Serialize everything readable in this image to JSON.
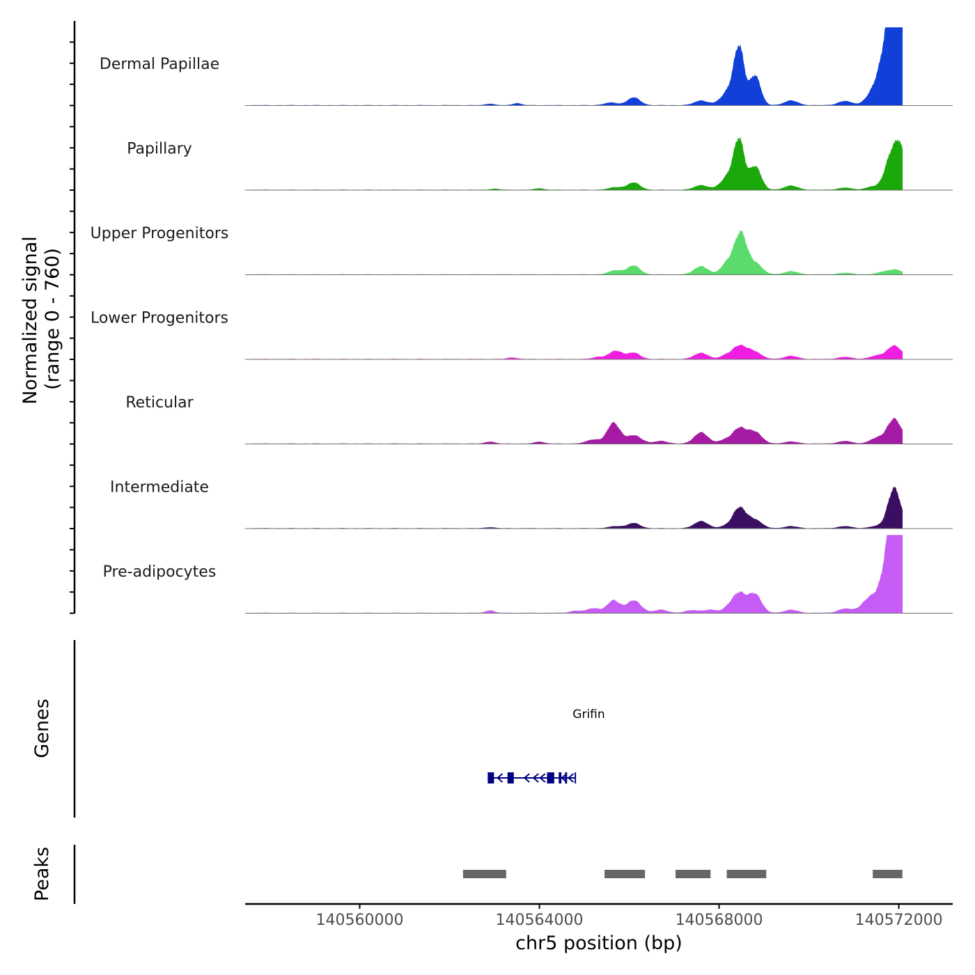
{
  "chart_data": {
    "type": "area",
    "ylabel_line1": "Normalized signal",
    "ylabel_line2": "(range 0 - 760)",
    "xlabel": "chr5 position (bp)",
    "xlim": [
      140557450,
      140573200
    ],
    "ylim": [
      0,
      760
    ],
    "x_ticks": [
      140560000,
      140564000,
      140568000,
      140572000
    ],
    "x_tick_labels": [
      "140560000",
      "140564000",
      "140568000",
      "140572000"
    ],
    "series": [
      {
        "name": "Dermal Papillae",
        "color": "#1140d9",
        "peaks": [
          {
            "x": 140562900,
            "h": 15,
            "w": 90
          },
          {
            "x": 140563500,
            "h": 20,
            "w": 90
          },
          {
            "x": 140565600,
            "h": 25,
            "w": 150
          },
          {
            "x": 140566100,
            "h": 75,
            "w": 140
          },
          {
            "x": 140567600,
            "h": 45,
            "w": 150
          },
          {
            "x": 140568250,
            "h": 150,
            "w": 180
          },
          {
            "x": 140568450,
            "h": 500,
            "w": 110
          },
          {
            "x": 140568800,
            "h": 290,
            "w": 120
          },
          {
            "x": 140569600,
            "h": 45,
            "w": 150
          },
          {
            "x": 140570800,
            "h": 40,
            "w": 150
          },
          {
            "x": 140571400,
            "h": 60,
            "w": 160
          },
          {
            "x": 140571700,
            "h": 330,
            "w": 200
          },
          {
            "x": 140571850,
            "h": 560,
            "w": 150
          },
          {
            "x": 140571950,
            "h": 700,
            "w": 120
          },
          {
            "x": 140572050,
            "h": 450,
            "w": 70
          }
        ]
      },
      {
        "name": "Papillary",
        "color": "#1aa80a",
        "peaks": [
          {
            "x": 140563000,
            "h": 10,
            "w": 90
          },
          {
            "x": 140564000,
            "h": 15,
            "w": 90
          },
          {
            "x": 140565700,
            "h": 25,
            "w": 150
          },
          {
            "x": 140566100,
            "h": 70,
            "w": 140
          },
          {
            "x": 140567600,
            "h": 45,
            "w": 150
          },
          {
            "x": 140568250,
            "h": 150,
            "w": 180
          },
          {
            "x": 140568450,
            "h": 420,
            "w": 110
          },
          {
            "x": 140568800,
            "h": 230,
            "w": 130
          },
          {
            "x": 140569600,
            "h": 40,
            "w": 150
          },
          {
            "x": 140570800,
            "h": 20,
            "w": 150
          },
          {
            "x": 140571400,
            "h": 30,
            "w": 140
          },
          {
            "x": 140571700,
            "h": 50,
            "w": 120
          },
          {
            "x": 140571900,
            "h": 400,
            "w": 150
          },
          {
            "x": 140572050,
            "h": 200,
            "w": 80
          }
        ]
      },
      {
        "name": "Upper Progenitors",
        "color": "#5bdb6b",
        "peaks": [
          {
            "x": 140565700,
            "h": 40,
            "w": 150
          },
          {
            "x": 140566100,
            "h": 85,
            "w": 140
          },
          {
            "x": 140567600,
            "h": 80,
            "w": 150
          },
          {
            "x": 140568100,
            "h": 30,
            "w": 100
          },
          {
            "x": 140568350,
            "h": 180,
            "w": 180
          },
          {
            "x": 140568500,
            "h": 270,
            "w": 120
          },
          {
            "x": 140568800,
            "h": 110,
            "w": 150
          },
          {
            "x": 140569600,
            "h": 30,
            "w": 150
          },
          {
            "x": 140570800,
            "h": 15,
            "w": 150
          },
          {
            "x": 140571700,
            "h": 30,
            "w": 150
          },
          {
            "x": 140571950,
            "h": 40,
            "w": 120
          }
        ]
      },
      {
        "name": "Lower Progenitors",
        "color": "#f01ee0",
        "peaks": [
          {
            "x": 140563400,
            "h": 15,
            "w": 100
          },
          {
            "x": 140565300,
            "h": 20,
            "w": 120
          },
          {
            "x": 140565700,
            "h": 80,
            "w": 150
          },
          {
            "x": 140566100,
            "h": 60,
            "w": 140
          },
          {
            "x": 140567600,
            "h": 60,
            "w": 150
          },
          {
            "x": 140568100,
            "h": 20,
            "w": 100
          },
          {
            "x": 140568450,
            "h": 130,
            "w": 180
          },
          {
            "x": 140568800,
            "h": 60,
            "w": 150
          },
          {
            "x": 140569600,
            "h": 30,
            "w": 150
          },
          {
            "x": 140570800,
            "h": 20,
            "w": 150
          },
          {
            "x": 140571500,
            "h": 30,
            "w": 150
          },
          {
            "x": 140571900,
            "h": 130,
            "w": 160
          }
        ]
      },
      {
        "name": "Reticular",
        "color": "#a51ba3",
        "peaks": [
          {
            "x": 140562900,
            "h": 20,
            "w": 100
          },
          {
            "x": 140564000,
            "h": 20,
            "w": 100
          },
          {
            "x": 140565200,
            "h": 40,
            "w": 150
          },
          {
            "x": 140565650,
            "h": 200,
            "w": 140
          },
          {
            "x": 140566100,
            "h": 80,
            "w": 170
          },
          {
            "x": 140566700,
            "h": 25,
            "w": 150
          },
          {
            "x": 140567600,
            "h": 110,
            "w": 150
          },
          {
            "x": 140568100,
            "h": 30,
            "w": 120
          },
          {
            "x": 140568450,
            "h": 150,
            "w": 160
          },
          {
            "x": 140568800,
            "h": 110,
            "w": 150
          },
          {
            "x": 140569600,
            "h": 20,
            "w": 150
          },
          {
            "x": 140570800,
            "h": 25,
            "w": 150
          },
          {
            "x": 140571500,
            "h": 50,
            "w": 150
          },
          {
            "x": 140571900,
            "h": 240,
            "w": 160
          }
        ]
      },
      {
        "name": "Intermediate",
        "color": "#3a0f62",
        "peaks": [
          {
            "x": 140562900,
            "h": 10,
            "w": 100
          },
          {
            "x": 140565700,
            "h": 20,
            "w": 150
          },
          {
            "x": 140566100,
            "h": 50,
            "w": 140
          },
          {
            "x": 140567600,
            "h": 70,
            "w": 150
          },
          {
            "x": 140568100,
            "h": 15,
            "w": 100
          },
          {
            "x": 140568450,
            "h": 200,
            "w": 150
          },
          {
            "x": 140568800,
            "h": 80,
            "w": 150
          },
          {
            "x": 140569600,
            "h": 20,
            "w": 150
          },
          {
            "x": 140570800,
            "h": 20,
            "w": 150
          },
          {
            "x": 140571500,
            "h": 20,
            "w": 150
          },
          {
            "x": 140571900,
            "h": 390,
            "w": 140
          }
        ]
      },
      {
        "name": "Pre-adipocytes",
        "color": "#c55cf5",
        "peaks": [
          {
            "x": 140562900,
            "h": 25,
            "w": 90
          },
          {
            "x": 140564800,
            "h": 20,
            "w": 120
          },
          {
            "x": 140565200,
            "h": 45,
            "w": 150
          },
          {
            "x": 140565650,
            "h": 120,
            "w": 140
          },
          {
            "x": 140566100,
            "h": 120,
            "w": 160
          },
          {
            "x": 140566700,
            "h": 30,
            "w": 150
          },
          {
            "x": 140567400,
            "h": 25,
            "w": 150
          },
          {
            "x": 140567800,
            "h": 30,
            "w": 150
          },
          {
            "x": 140568200,
            "h": 40,
            "w": 120
          },
          {
            "x": 140568450,
            "h": 190,
            "w": 150
          },
          {
            "x": 140568800,
            "h": 180,
            "w": 140
          },
          {
            "x": 140569600,
            "h": 30,
            "w": 150
          },
          {
            "x": 140570800,
            "h": 40,
            "w": 150
          },
          {
            "x": 140571400,
            "h": 160,
            "w": 200
          },
          {
            "x": 140571800,
            "h": 600,
            "w": 150
          },
          {
            "x": 140571950,
            "h": 760,
            "w": 120
          },
          {
            "x": 140572050,
            "h": 400,
            "w": 70
          }
        ]
      }
    ],
    "genes_label": "Genes",
    "gene": {
      "name": "Grifin",
      "start": 140562850,
      "end": 140564800,
      "strand": "-",
      "exons": [
        [
          140562850,
          140562990
        ],
        [
          140563290,
          140563430
        ],
        [
          140564170,
          140564330
        ],
        [
          140564430,
          140564490
        ],
        [
          140564570,
          140564610
        ]
      ]
    },
    "peaks_label": "Peaks",
    "peak_regions": [
      [
        140562300,
        140563260
      ],
      [
        140565450,
        140566350
      ],
      [
        140567030,
        140567810
      ],
      [
        140568170,
        140569050
      ],
      [
        140571420,
        140572080
      ]
    ]
  }
}
